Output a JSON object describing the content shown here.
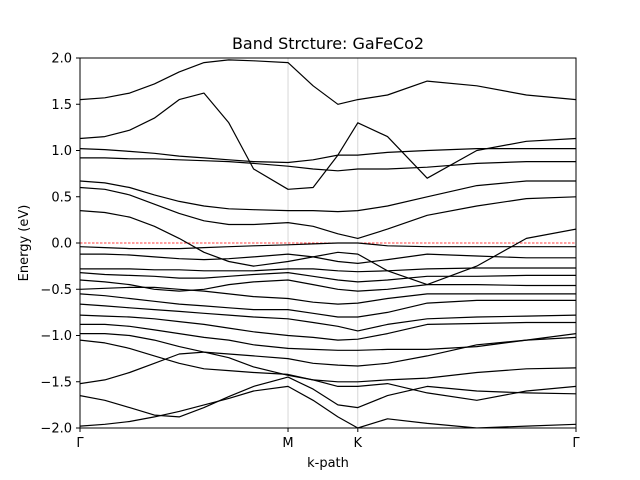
{
  "chart_data": {
    "type": "line",
    "title": "Band Strcture: GaFeCo2",
    "xlabel": "k-path",
    "ylabel": "Energy (eV)",
    "xlim": [
      0,
      1
    ],
    "ylim": [
      -2.0,
      2.0
    ],
    "y_ticks": [
      -2.0,
      -1.5,
      -1.0,
      -0.5,
      0.0,
      0.5,
      1.0,
      1.5,
      2.0
    ],
    "y_tick_labels": [
      "−2.0",
      "−1.5",
      "−1.0",
      "−0.5",
      "0.0",
      "0.5",
      "1.0",
      "1.5",
      "2.0"
    ],
    "k_points": [
      {
        "label": "Γ",
        "x": 0.0
      },
      {
        "label": "M",
        "x": 0.4194
      },
      {
        "label": "K",
        "x": 0.5601
      },
      {
        "label": "Γ",
        "x": 1.0
      }
    ],
    "fermi_level": 0.0,
    "grid": "vertical lines at high-symmetry points",
    "colors": {
      "bands": "#000000",
      "fermi_line": "#ff0000",
      "kpoint_lines": "#cccccc"
    },
    "series": [
      {
        "x": [
          0,
          0.05,
          0.1,
          0.15,
          0.2,
          0.25,
          0.3,
          0.35,
          0.4194,
          0.47,
          0.52,
          0.5601,
          0.62,
          0.7,
          0.8,
          0.9,
          1.0
        ],
        "y": [
          -1.98,
          -1.96,
          -1.93,
          -1.88,
          -1.82,
          -1.75,
          -1.68,
          -1.6,
          -1.55,
          -1.7,
          -1.88,
          -2.0,
          -1.9,
          -1.95,
          -2.0,
          -1.98,
          -1.96
        ]
      },
      {
        "x": [
          0,
          0.05,
          0.1,
          0.15,
          0.2,
          0.25,
          0.3,
          0.35,
          0.4194,
          0.47,
          0.52,
          0.5601,
          0.62,
          0.7,
          0.8,
          0.9,
          1.0
        ],
        "y": [
          -1.65,
          -1.7,
          -1.78,
          -1.86,
          -1.88,
          -1.78,
          -1.66,
          -1.55,
          -1.45,
          -1.58,
          -1.75,
          -1.78,
          -1.65,
          -1.55,
          -1.6,
          -1.62,
          -1.63
        ]
      },
      {
        "x": [
          0,
          0.05,
          0.1,
          0.15,
          0.2,
          0.25,
          0.3,
          0.35,
          0.4194,
          0.47,
          0.52,
          0.5601,
          0.62,
          0.7,
          0.8,
          0.9,
          1.0
        ],
        "y": [
          -1.52,
          -1.48,
          -1.4,
          -1.3,
          -1.2,
          -1.18,
          -1.24,
          -1.34,
          -1.43,
          -1.48,
          -1.55,
          -1.55,
          -1.52,
          -1.62,
          -1.7,
          -1.6,
          -1.55
        ]
      },
      {
        "x": [
          0,
          0.05,
          0.1,
          0.15,
          0.2,
          0.25,
          0.3,
          0.35,
          0.4194,
          0.47,
          0.52,
          0.5601,
          0.62,
          0.7,
          0.8,
          0.9,
          1.0
        ],
        "y": [
          -1.05,
          -1.08,
          -1.14,
          -1.22,
          -1.3,
          -1.36,
          -1.38,
          -1.4,
          -1.42,
          -1.48,
          -1.5,
          -1.5,
          -1.48,
          -1.46,
          -1.4,
          -1.36,
          -1.35
        ]
      },
      {
        "x": [
          0,
          0.05,
          0.1,
          0.15,
          0.2,
          0.25,
          0.3,
          0.35,
          0.4194,
          0.47,
          0.52,
          0.5601,
          0.62,
          0.7,
          0.8,
          0.9,
          1.0
        ],
        "y": [
          -0.98,
          -0.98,
          -1.0,
          -1.05,
          -1.12,
          -1.18,
          -1.2,
          -1.22,
          -1.25,
          -1.3,
          -1.32,
          -1.33,
          -1.3,
          -1.22,
          -1.1,
          -1.05,
          -1.02
        ]
      },
      {
        "x": [
          0,
          0.05,
          0.1,
          0.15,
          0.2,
          0.25,
          0.3,
          0.35,
          0.4194,
          0.47,
          0.52,
          0.5601,
          0.62,
          0.7,
          0.8,
          0.9,
          1.0
        ],
        "y": [
          -0.88,
          -0.88,
          -0.9,
          -0.94,
          -0.98,
          -1.02,
          -1.05,
          -1.1,
          -1.14,
          -1.15,
          -1.16,
          -1.16,
          -1.15,
          -1.15,
          -1.12,
          -1.05,
          -0.98
        ]
      },
      {
        "x": [
          0,
          0.05,
          0.1,
          0.15,
          0.2,
          0.25,
          0.3,
          0.35,
          0.4194,
          0.47,
          0.52,
          0.5601,
          0.62,
          0.7,
          0.8,
          0.9,
          1.0
        ],
        "y": [
          -0.78,
          -0.79,
          -0.8,
          -0.82,
          -0.85,
          -0.88,
          -0.92,
          -0.96,
          -1.0,
          -1.02,
          -1.05,
          -1.04,
          -0.98,
          -0.88,
          -0.87,
          -0.86,
          -0.86
        ]
      },
      {
        "x": [
          0,
          0.05,
          0.1,
          0.15,
          0.2,
          0.25,
          0.3,
          0.35,
          0.4194,
          0.47,
          0.52,
          0.5601,
          0.62,
          0.7,
          0.8,
          0.9,
          1.0
        ],
        "y": [
          -0.66,
          -0.68,
          -0.7,
          -0.72,
          -0.74,
          -0.76,
          -0.78,
          -0.8,
          -0.82,
          -0.86,
          -0.9,
          -0.95,
          -0.88,
          -0.82,
          -0.8,
          -0.79,
          -0.78
        ]
      },
      {
        "x": [
          0,
          0.05,
          0.1,
          0.15,
          0.2,
          0.25,
          0.3,
          0.35,
          0.4194,
          0.47,
          0.52,
          0.5601,
          0.62,
          0.7,
          0.8,
          0.9,
          1.0
        ],
        "y": [
          -0.55,
          -0.57,
          -0.6,
          -0.63,
          -0.66,
          -0.68,
          -0.7,
          -0.72,
          -0.72,
          -0.76,
          -0.8,
          -0.8,
          -0.75,
          -0.65,
          -0.62,
          -0.62,
          -0.62
        ]
      },
      {
        "x": [
          0,
          0.05,
          0.1,
          0.15,
          0.2,
          0.25,
          0.3,
          0.35,
          0.4194,
          0.47,
          0.52,
          0.5601,
          0.62,
          0.7,
          0.8,
          0.9,
          1.0
        ],
        "y": [
          -0.5,
          -0.49,
          -0.48,
          -0.48,
          -0.5,
          -0.52,
          -0.55,
          -0.58,
          -0.6,
          -0.64,
          -0.66,
          -0.65,
          -0.6,
          -0.55,
          -0.55,
          -0.55,
          -0.55
        ]
      },
      {
        "x": [
          0,
          0.05,
          0.1,
          0.15,
          0.2,
          0.25,
          0.3,
          0.35,
          0.4194,
          0.47,
          0.52,
          0.5601,
          0.62,
          0.7,
          0.8,
          0.9,
          1.0
        ],
        "y": [
          -0.4,
          -0.42,
          -0.45,
          -0.5,
          -0.52,
          -0.5,
          -0.45,
          -0.42,
          -0.4,
          -0.45,
          -0.5,
          -0.52,
          -0.5,
          -0.45,
          -0.45,
          -0.46,
          -0.46
        ]
      },
      {
        "x": [
          0,
          0.05,
          0.1,
          0.15,
          0.2,
          0.25,
          0.3,
          0.35,
          0.4194,
          0.47,
          0.52,
          0.5601,
          0.62,
          0.7,
          0.8,
          0.9,
          1.0
        ],
        "y": [
          -0.32,
          -0.34,
          -0.35,
          -0.36,
          -0.38,
          -0.38,
          -0.36,
          -0.34,
          -0.32,
          -0.36,
          -0.4,
          -0.42,
          -0.4,
          -0.36,
          -0.36,
          -0.35,
          -0.35
        ]
      },
      {
        "x": [
          0,
          0.05,
          0.1,
          0.15,
          0.2,
          0.25,
          0.3,
          0.35,
          0.4194,
          0.47,
          0.52,
          0.5601,
          0.62,
          0.7,
          0.8,
          0.9,
          1.0
        ],
        "y": [
          -0.28,
          -0.28,
          -0.28,
          -0.29,
          -0.29,
          -0.3,
          -0.3,
          -0.3,
          -0.28,
          -0.28,
          -0.3,
          -0.31,
          -0.3,
          -0.28,
          -0.27,
          -0.27,
          -0.27
        ]
      },
      {
        "x": [
          0,
          0.05,
          0.1,
          0.15,
          0.2,
          0.25,
          0.3,
          0.35,
          0.4194,
          0.47,
          0.52,
          0.5601,
          0.62,
          0.7,
          0.8,
          0.9,
          1.0
        ],
        "y": [
          -0.12,
          -0.12,
          -0.13,
          -0.15,
          -0.17,
          -0.18,
          -0.17,
          -0.15,
          -0.12,
          -0.15,
          -0.2,
          -0.22,
          -0.18,
          -0.12,
          -0.14,
          -0.16,
          -0.16
        ]
      },
      {
        "x": [
          0,
          0.05,
          0.1,
          0.15,
          0.2,
          0.25,
          0.3,
          0.35,
          0.4194,
          0.47,
          0.52,
          0.5601,
          0.62,
          0.7,
          0.8,
          0.9,
          1.0
        ],
        "y": [
          -0.04,
          -0.05,
          -0.06,
          -0.06,
          -0.06,
          -0.05,
          -0.04,
          -0.03,
          -0.02,
          -0.01,
          0.0,
          0.0,
          -0.03,
          -0.04,
          -0.04,
          -0.04,
          -0.04
        ]
      },
      {
        "x": [
          0,
          0.05,
          0.1,
          0.15,
          0.2,
          0.25,
          0.3,
          0.35,
          0.4194,
          0.47,
          0.52,
          0.5601,
          0.62,
          0.7,
          0.8,
          0.9,
          1.0
        ],
        "y": [
          0.35,
          0.33,
          0.28,
          0.18,
          0.05,
          -0.1,
          -0.2,
          -0.25,
          -0.2,
          -0.15,
          -0.1,
          -0.12,
          -0.3,
          -0.45,
          -0.25,
          0.05,
          0.15
        ]
      },
      {
        "x": [
          0,
          0.05,
          0.1,
          0.15,
          0.2,
          0.25,
          0.3,
          0.35,
          0.4194,
          0.47,
          0.52,
          0.5601,
          0.62,
          0.7,
          0.8,
          0.9,
          1.0
        ],
        "y": [
          0.6,
          0.58,
          0.52,
          0.42,
          0.32,
          0.24,
          0.2,
          0.2,
          0.22,
          0.18,
          0.1,
          0.05,
          0.15,
          0.3,
          0.4,
          0.48,
          0.5
        ]
      },
      {
        "x": [
          0,
          0.05,
          0.1,
          0.15,
          0.2,
          0.25,
          0.3,
          0.35,
          0.4194,
          0.47,
          0.52,
          0.5601,
          0.62,
          0.7,
          0.8,
          0.9,
          1.0
        ],
        "y": [
          0.67,
          0.65,
          0.6,
          0.52,
          0.45,
          0.4,
          0.37,
          0.36,
          0.35,
          0.35,
          0.34,
          0.35,
          0.4,
          0.5,
          0.62,
          0.67,
          0.67
        ]
      },
      {
        "x": [
          0,
          0.05,
          0.1,
          0.15,
          0.2,
          0.25,
          0.3,
          0.35,
          0.4194,
          0.47,
          0.52,
          0.5601,
          0.62,
          0.7,
          0.8,
          0.9,
          1.0
        ],
        "y": [
          0.92,
          0.92,
          0.91,
          0.91,
          0.9,
          0.89,
          0.88,
          0.86,
          0.83,
          0.8,
          0.78,
          0.8,
          0.8,
          0.82,
          0.86,
          0.88,
          0.88
        ]
      },
      {
        "x": [
          0,
          0.05,
          0.1,
          0.15,
          0.2,
          0.25,
          0.3,
          0.35,
          0.4194,
          0.47,
          0.52,
          0.5601,
          0.62,
          0.7,
          0.8,
          0.9,
          1.0
        ],
        "y": [
          1.02,
          1.01,
          0.99,
          0.97,
          0.94,
          0.92,
          0.9,
          0.88,
          0.87,
          0.9,
          0.95,
          0.95,
          0.98,
          1.0,
          1.02,
          1.02,
          1.02
        ]
      },
      {
        "x": [
          0,
          0.05,
          0.1,
          0.15,
          0.2,
          0.25,
          0.3,
          0.35,
          0.4194,
          0.47,
          0.52,
          0.5601,
          0.62,
          0.7,
          0.8,
          0.9,
          1.0
        ],
        "y": [
          1.13,
          1.15,
          1.22,
          1.35,
          1.55,
          1.62,
          1.3,
          0.8,
          0.58,
          0.6,
          0.95,
          1.3,
          1.15,
          0.7,
          1.0,
          1.1,
          1.13
        ]
      },
      {
        "x": [
          0,
          0.05,
          0.1,
          0.15,
          0.2,
          0.25,
          0.3,
          0.35,
          0.4194,
          0.47,
          0.52,
          0.5601,
          0.62,
          0.7,
          0.8,
          0.9,
          1.0
        ],
        "y": [
          1.55,
          1.57,
          1.62,
          1.72,
          1.85,
          1.95,
          1.98,
          1.97,
          1.95,
          1.7,
          1.5,
          1.55,
          1.6,
          1.75,
          1.7,
          1.6,
          1.55
        ]
      }
    ]
  }
}
